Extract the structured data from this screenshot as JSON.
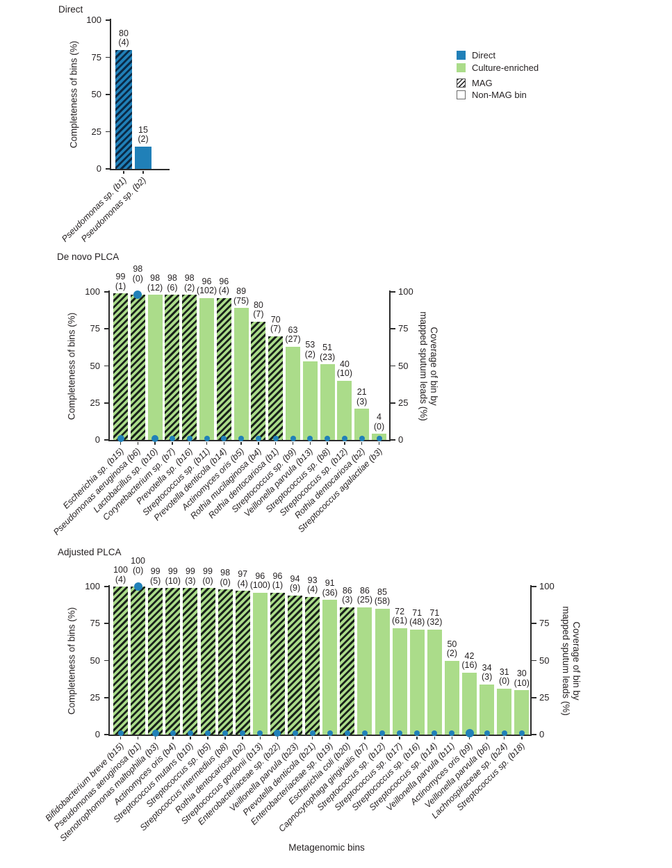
{
  "colors": {
    "direct_blue": "#2080b8",
    "culture_green": "#abdc8a",
    "hatch_on_green": "#1a231b",
    "hatch_on_blue": "#0a2a47",
    "axis": "#2b2b2b",
    "text": "#231f20"
  },
  "legend": {
    "items": [
      {
        "label": "Direct",
        "swatch": "direct"
      },
      {
        "label": "Culture-enriched",
        "swatch": "culture"
      },
      {
        "label": "MAG",
        "swatch": "mag"
      },
      {
        "label": "Non-MAG bin",
        "swatch": "nonmag"
      }
    ]
  },
  "axes": {
    "x_label": "Metagenomic bins"
  },
  "chart_data": [
    {
      "id": "direct",
      "type": "bar",
      "title": "Direct",
      "ylabel": "Completeness of bins (%)",
      "ylim": [
        0,
        100
      ],
      "yticks": [
        0,
        25,
        50,
        75,
        100
      ],
      "grid": false,
      "bar_color": "direct_blue",
      "bars": [
        {
          "label": "Pseudomonas sp. (b1)",
          "value": 80,
          "paren": 4,
          "mag": true,
          "coverage_dot": null
        },
        {
          "label": "Pseudomonas sp. (b2)",
          "value": 15,
          "paren": 2,
          "mag": false,
          "coverage_dot": null
        }
      ]
    },
    {
      "id": "denovo",
      "type": "bar",
      "title": "De novo PLCA",
      "ylabel": "Completeness of bins (%)",
      "right_ylabel_lines": [
        "Coverage of bin by",
        "mapped sputum leads (%)"
      ],
      "ylim": [
        0,
        100
      ],
      "yticks": [
        0,
        25,
        50,
        75,
        100
      ],
      "right_yticks": [
        0,
        25,
        50,
        75,
        100
      ],
      "grid": false,
      "bar_color": "culture_green",
      "bars": [
        {
          "label": "Escherichia sp. (b15)",
          "value": 99,
          "paren": 1,
          "mag": true,
          "coverage_dot": 2
        },
        {
          "label": "Pseudomonas aeruginosa (b6)",
          "value": 98,
          "paren": 0,
          "mag": true,
          "coverage_dot": 98
        },
        {
          "label": "Lactobacillus sp. (b10)",
          "value": 98,
          "paren": 12,
          "mag": false,
          "coverage_dot": 2
        },
        {
          "label": "Corynebacterium sp. (b7)",
          "value": 98,
          "paren": 6,
          "mag": true,
          "coverage_dot": 1
        },
        {
          "label": "Prevotella sp. (b16)",
          "value": 98,
          "paren": 2,
          "mag": true,
          "coverage_dot": 1
        },
        {
          "label": "Streptococcus sp. (b11)",
          "value": 96,
          "paren": 102,
          "mag": false,
          "coverage_dot": 1
        },
        {
          "label": "Prevotella denticola (b14)",
          "value": 96,
          "paren": 4,
          "mag": true,
          "coverage_dot": 1
        },
        {
          "label": "Actinomyces oris (b5)",
          "value": 89,
          "paren": 75,
          "mag": false,
          "coverage_dot": 1
        },
        {
          "label": "Rothia mucilaginosa (b4)",
          "value": 80,
          "paren": 7,
          "mag": true,
          "coverage_dot": 1
        },
        {
          "label": "Rothia dentocariosa (b1)",
          "value": 70,
          "paren": 7,
          "mag": true,
          "coverage_dot": 1
        },
        {
          "label": "Streptococcus sp. (b9)",
          "value": 63,
          "paren": 27,
          "mag": false,
          "coverage_dot": 1
        },
        {
          "label": "Veillonella parvula (b13)",
          "value": 53,
          "paren": 2,
          "mag": false,
          "coverage_dot": 1
        },
        {
          "label": "Streptococcus sp. (b8)",
          "value": 51,
          "paren": 23,
          "mag": false,
          "coverage_dot": 1
        },
        {
          "label": "Streptococcus sp. (b12)",
          "value": 40,
          "paren": 10,
          "mag": false,
          "coverage_dot": 1
        },
        {
          "label": "Rothia dentocariosa (b2)",
          "value": 21,
          "paren": 3,
          "mag": false,
          "coverage_dot": 1
        },
        {
          "label": "Streptococcus agalactiae (b3)",
          "value": 4,
          "paren": 0,
          "mag": false,
          "coverage_dot": 1
        }
      ]
    },
    {
      "id": "adjusted",
      "type": "bar",
      "title": "Adjusted PLCA",
      "ylabel": "Completeness of bins (%)",
      "right_ylabel_lines": [
        "Coverage of bin by",
        "mapped sputum leads (%)"
      ],
      "xlabel": "Metagenomic bins",
      "ylim": [
        0,
        100
      ],
      "yticks": [
        0,
        25,
        50,
        75,
        100
      ],
      "right_yticks": [
        0,
        25,
        50,
        75,
        100
      ],
      "grid": false,
      "bar_color": "culture_green",
      "bars": [
        {
          "label": "Bifidobacterium breve (b15)",
          "value": 100,
          "paren": 4,
          "mag": true,
          "coverage_dot": 1
        },
        {
          "label": "Pseudomonas aeruginosa (b1)",
          "value": 100,
          "paren": 0,
          "mag": true,
          "coverage_dot": 100
        },
        {
          "label": "Stenotrophomonas maltophilia (b3)",
          "value": 99,
          "paren": 5,
          "mag": true,
          "coverage_dot": 2
        },
        {
          "label": "Actinomyces oris (b4)",
          "value": 99,
          "paren": 10,
          "mag": true,
          "coverage_dot": 1
        },
        {
          "label": "Streptococcus mutans (b10)",
          "value": 99,
          "paren": 3,
          "mag": true,
          "coverage_dot": 1
        },
        {
          "label": "Streptococcus sp. (b5)",
          "value": 99,
          "paren": 0,
          "mag": true,
          "coverage_dot": 1
        },
        {
          "label": "Streptococcus intermedius (b8)",
          "value": 98,
          "paren": 0,
          "mag": true,
          "coverage_dot": 1
        },
        {
          "label": "Rothia dentocariosa (b2)",
          "value": 97,
          "paren": 4,
          "mag": true,
          "coverage_dot": 1
        },
        {
          "label": "Streptococcus gordonii (b13)",
          "value": 96,
          "paren": 100,
          "mag": false,
          "coverage_dot": 1
        },
        {
          "label": "Enterobacteriaceae sp. (b22)",
          "value": 96,
          "paren": 1,
          "mag": true,
          "coverage_dot": 2
        },
        {
          "label": "Veillonella parvula (b23)",
          "value": 94,
          "paren": 9,
          "mag": true,
          "coverage_dot": 1
        },
        {
          "label": "Prevotella denticola (b21)",
          "value": 93,
          "paren": 4,
          "mag": true,
          "coverage_dot": 1
        },
        {
          "label": "Enterobacteriaceae sp. (b19)",
          "value": 91,
          "paren": 36,
          "mag": false,
          "coverage_dot": 1
        },
        {
          "label": "Escherichia coli (b20)",
          "value": 86,
          "paren": 3,
          "mag": true,
          "coverage_dot": 1
        },
        {
          "label": "Capnocytophaga gingivalis (b7)",
          "value": 86,
          "paren": 25,
          "mag": false,
          "coverage_dot": 1
        },
        {
          "label": "Streptococcus sp. (b12)",
          "value": 85,
          "paren": 58,
          "mag": false,
          "coverage_dot": 1
        },
        {
          "label": "Streptococcus sp. (b17)",
          "value": 72,
          "paren": 61,
          "mag": false,
          "coverage_dot": 1
        },
        {
          "label": "Streptococcus sp. (b16)",
          "value": 71,
          "paren": 48,
          "mag": false,
          "coverage_dot": 1
        },
        {
          "label": "Streptococcus sp. (b14)",
          "value": 71,
          "paren": 32,
          "mag": false,
          "coverage_dot": 1
        },
        {
          "label": "Veillonella parvula (b11)",
          "value": 50,
          "paren": 2,
          "mag": false,
          "coverage_dot": 1
        },
        {
          "label": "Actinomyces oris (b9)",
          "value": 42,
          "paren": 16,
          "mag": false,
          "coverage_dot": 3
        },
        {
          "label": "Veillonella parvula (b6)",
          "value": 34,
          "paren": 3,
          "mag": false,
          "coverage_dot": 1
        },
        {
          "label": "Lachnospiraceae sp. (b24)",
          "value": 31,
          "paren": 0,
          "mag": false,
          "coverage_dot": 1
        },
        {
          "label": "Streptococcus sp. (b18)",
          "value": 30,
          "paren": 10,
          "mag": false,
          "coverage_dot": 1
        }
      ]
    }
  ]
}
